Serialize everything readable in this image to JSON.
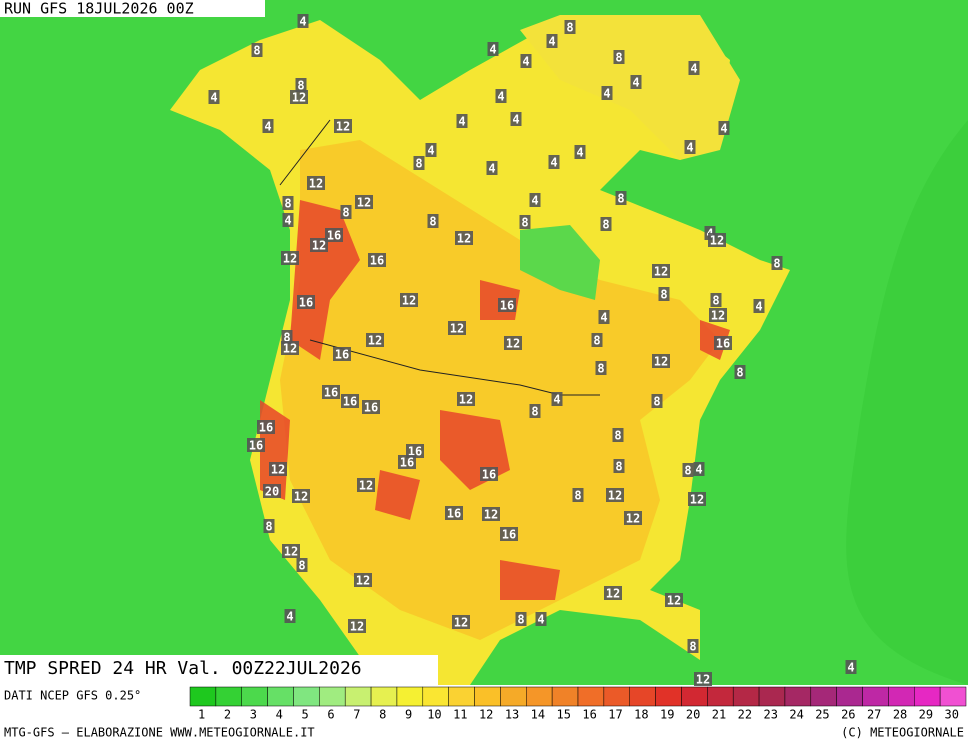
{
  "header": {
    "run": "RUN GFS 18JUL2026 00Z"
  },
  "footer": {
    "title": "TMP SPRED 24 HR Val. 00Z22JUL2026",
    "source": "DATI NCEP GFS 0.25°",
    "credit": "MTG-GFS — ELABORAZIONE WWW.METEOGIORNALE.IT",
    "copyright": "(C) METEOGIORNALE"
  },
  "colorbar": {
    "ticks": [
      1,
      2,
      3,
      4,
      5,
      6,
      7,
      8,
      9,
      10,
      11,
      12,
      13,
      14,
      15,
      16,
      17,
      18,
      19,
      20,
      21,
      22,
      23,
      24,
      25,
      26,
      27,
      28,
      29,
      30
    ],
    "colors": [
      "#1ec81e",
      "#34d134",
      "#4cd94c",
      "#66e066",
      "#80e680",
      "#a0ec80",
      "#c8f070",
      "#e6f050",
      "#f5f032",
      "#fae632",
      "#fad232",
      "#fac028",
      "#f5aa28",
      "#f59628",
      "#f08228",
      "#f06e28",
      "#eb5a28",
      "#e64628",
      "#e13228",
      "#d22832",
      "#c3283c",
      "#b42846",
      "#aa2850",
      "#a52864",
      "#a52878",
      "#aa2890",
      "#be28a5",
      "#d228b4",
      "#e628c3",
      "#f050d2"
    ]
  },
  "map": {
    "labels": [
      8,
      4,
      8,
      4,
      4,
      8,
      4,
      4,
      8,
      4,
      12,
      4,
      4,
      4,
      4,
      12,
      4,
      4,
      4,
      4,
      8,
      4,
      4,
      4,
      4,
      12,
      8,
      12,
      8,
      4,
      8,
      4,
      8,
      8,
      8,
      16,
      12,
      12,
      4,
      12,
      12,
      16,
      12,
      8,
      8,
      16,
      12,
      16,
      8,
      4,
      4,
      12,
      12,
      8,
      12,
      16,
      12,
      12,
      8,
      16,
      12,
      8,
      8,
      16,
      16,
      16,
      12,
      4,
      8,
      8,
      16,
      8,
      16,
      16,
      16,
      12,
      16,
      8,
      8,
      4,
      20,
      12,
      12,
      8,
      12,
      12,
      16,
      12,
      12,
      8,
      16,
      12,
      8,
      12,
      12,
      12,
      4,
      12,
      12,
      8,
      4,
      8,
      4,
      12
    ]
  }
}
